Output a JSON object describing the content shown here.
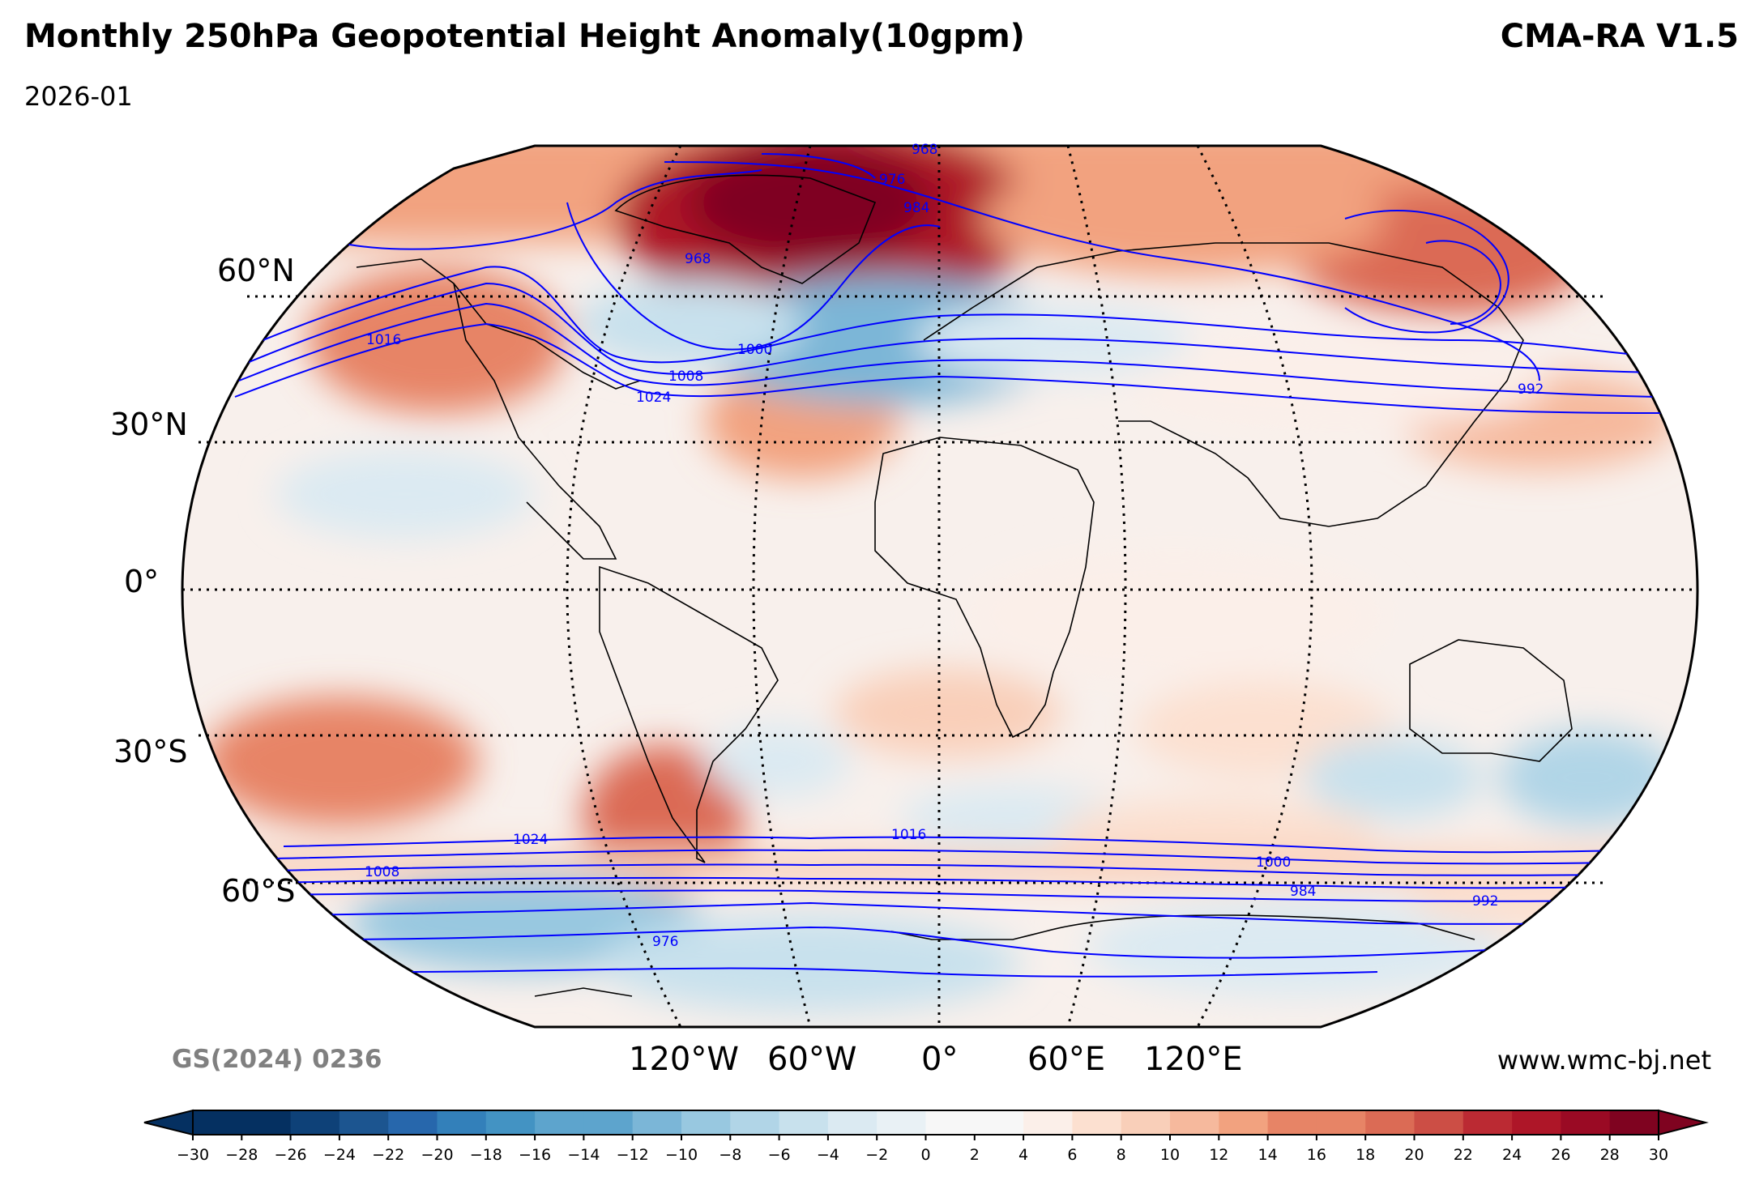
{
  "header": {
    "title": "Monthly 250hPa Geopotential Height Anomaly(10gpm)",
    "model": "CMA-RA V1.5",
    "date": "2026-01"
  },
  "footer": {
    "approval_number": "GS(2024) 0236",
    "website": "www.wmc-bj.net"
  },
  "map": {
    "projection": "Robinson",
    "lat_labels": [
      "60°N",
      "30°N",
      "0°",
      "30°S",
      "60°S"
    ],
    "lon_labels": [
      "120°W",
      "60°W",
      "0°",
      "60°E",
      "120°E"
    ],
    "contour_color": "#0000ff",
    "contour_labels_nh": [
      "968",
      "976",
      "984",
      "968",
      "1016",
      "1000",
      "1008",
      "1024",
      "992"
    ],
    "contour_labels_sh": [
      "1024",
      "1016",
      "1008",
      "1000",
      "984",
      "992",
      "976"
    ]
  },
  "colorbar": {
    "ticks": [
      "−30",
      "−28",
      "−26",
      "−24",
      "−22",
      "−20",
      "−18",
      "−16",
      "−14",
      "−12",
      "−10",
      "−8",
      "−6",
      "−4",
      "−2",
      "0",
      "2",
      "4",
      "6",
      "8",
      "10",
      "12",
      "14",
      "16",
      "18",
      "20",
      "22",
      "24",
      "26",
      "28",
      "30"
    ],
    "colors": [
      "#053061",
      "#0e4178",
      "#1c5590",
      "#2767ac",
      "#3380ba",
      "#4393c3",
      "#5da4cd",
      "#7bb6d7",
      "#98c8e0",
      "#b1d5e7",
      "#c8e1ed",
      "#dbeaf2",
      "#e9f1f5",
      "#f7f7f7",
      "#fbefe9",
      "#fce0d0",
      "#f9cfb9",
      "#f6b99d",
      "#f2a27f",
      "#e78466",
      "#db6b55",
      "#cc4e45",
      "#bb2a33",
      "#ae1628",
      "#9a0a24",
      "#7f0320"
    ],
    "min": -30,
    "max": 30
  }
}
